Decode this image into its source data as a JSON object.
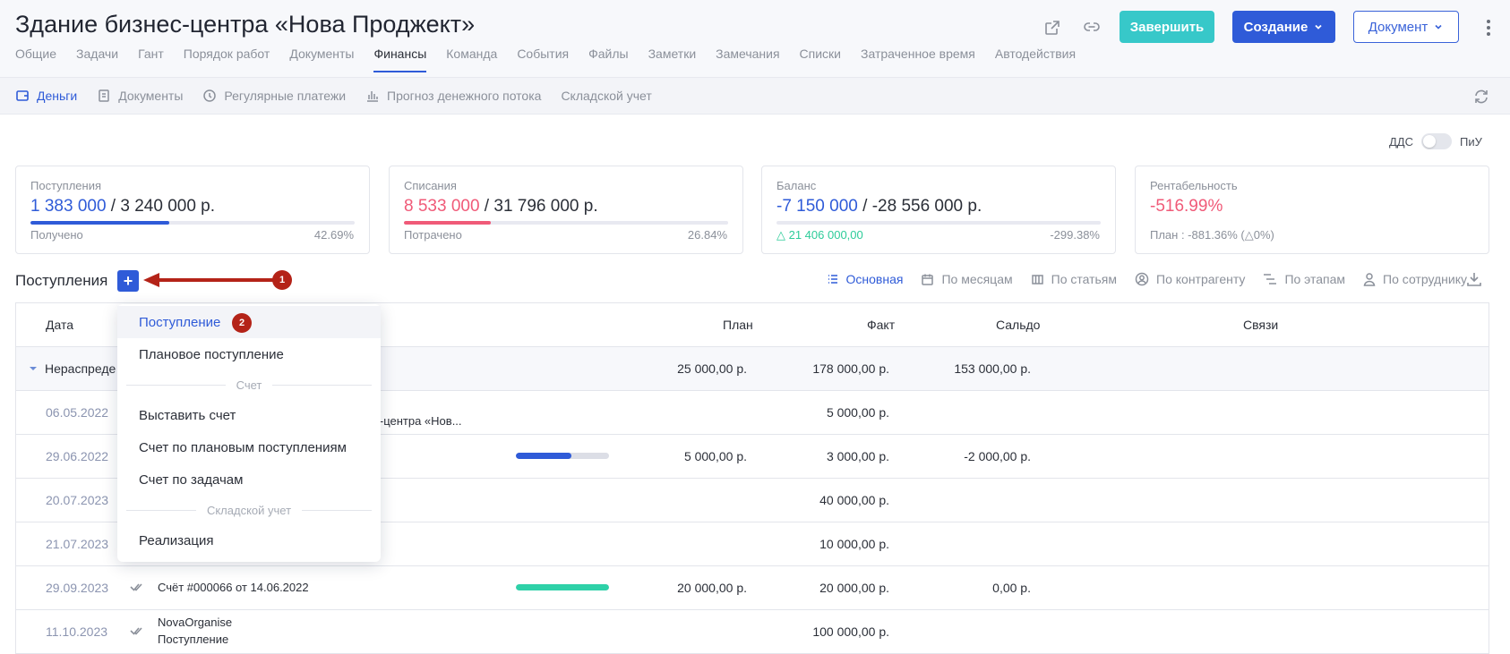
{
  "header": {
    "title": "Здание бизнес-центра «Нова Проджект»",
    "finish_label": "Завершить",
    "create_label": "Создание",
    "document_label": "Документ"
  },
  "tabs": [
    "Общие",
    "Задачи",
    "Гант",
    "Порядок работ",
    "Документы",
    "Финансы",
    "Команда",
    "События",
    "Файлы",
    "Заметки",
    "Замечания",
    "Списки",
    "Затраченное время",
    "Автодействия"
  ],
  "active_tab": "Финансы",
  "subnav": [
    "Деньги",
    "Документы",
    "Регулярные платежи",
    "Прогноз денежного потока",
    "Складской учет"
  ],
  "toggle": {
    "left": "ДДС",
    "right": "ПиУ"
  },
  "cards": {
    "income": {
      "label": "Поступления",
      "value": "1 383 000",
      "total": "3 240 000 р.",
      "foot": "Получено",
      "percent": "42.69%",
      "fill": 0.4269
    },
    "expense": {
      "label": "Списания",
      "value": "8 533 000",
      "total": "31 796 000 р.",
      "foot": "Потрачено",
      "percent": "26.84%",
      "fill": 0.2684
    },
    "balance": {
      "label": "Баланс",
      "value": "-7 150 000",
      "total": "-28 556 000 р.",
      "foot": "21 406 000,00",
      "percent": "-299.38%"
    },
    "profit": {
      "label": "Рентабельность",
      "value": "-516.99%",
      "foot": "План : -881.36% (△0%)"
    }
  },
  "section": {
    "title": "Поступления",
    "badge1": "1",
    "badge2": "2"
  },
  "views": [
    "Основная",
    "По месяцам",
    "По статьям",
    "По контрагенту",
    "По этапам",
    "По сотруднику"
  ],
  "table": {
    "headers": {
      "date": "Дата",
      "plan": "План",
      "fact": "Факт",
      "saldo": "Сальдо",
      "links": "Связи"
    },
    "group": {
      "name": "Нераспреде",
      "plan": "25 000,00 р.",
      "fact": "178 000,00 р.",
      "saldo": "153 000,00 р."
    },
    "rows": [
      {
        "date": "06.05.2022",
        "desc": "знес-центра «Нов...",
        "plan": "",
        "fact": "5 000,00 р.",
        "saldo": ""
      },
      {
        "date": "29.06.2022",
        "desc": "",
        "plan": "5 000,00 р.",
        "fact": "3 000,00 р.",
        "saldo": "-2 000,00 р.",
        "progress": 0.6
      },
      {
        "date": "20.07.2023",
        "desc": "",
        "plan": "",
        "fact": "40 000,00 р.",
        "saldo": ""
      },
      {
        "date": "21.07.2023",
        "desc": "",
        "plan": "",
        "fact": "10 000,00 р.",
        "saldo": ""
      },
      {
        "date": "29.09.2023",
        "desc": "Счёт #000066 от 14.06.2022",
        "plan": "20 000,00 р.",
        "fact": "20 000,00 р.",
        "saldo": "0,00 р.",
        "progress": 1.0
      },
      {
        "date": "11.10.2023",
        "desc": "NovaOrganise",
        "desc2": "Поступление",
        "plan": "",
        "fact": "100 000,00 р.",
        "saldo": ""
      }
    ]
  },
  "dropdown": {
    "items": [
      "Поступление",
      "Плановое поступление",
      "Выставить счет",
      "Счет по плановым поступлениям",
      "Счет по задачам",
      "Реализация"
    ],
    "sep1": "Счет",
    "sep2": "Складской учет"
  },
  "colors": {
    "accent": "#2f5bd8",
    "teal": "#37c8c9",
    "negative": "#f05a78",
    "positive": "#2ecc9a",
    "badge": "#b42318"
  }
}
